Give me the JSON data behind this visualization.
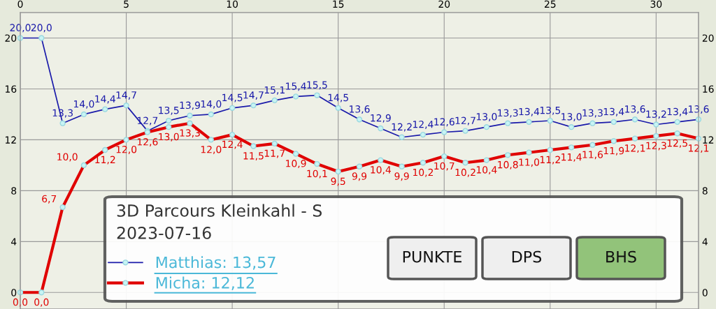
{
  "chart_data": {
    "type": "line",
    "title": "3D Parcours Kleinkahl - S",
    "subtitle": "2023-07-16",
    "x": [
      0,
      1,
      2,
      3,
      4,
      5,
      6,
      7,
      8,
      9,
      10,
      11,
      12,
      13,
      14,
      15,
      16,
      17,
      18,
      19,
      20,
      21,
      22,
      23,
      24,
      25,
      26,
      27,
      28,
      29,
      30,
      31,
      32
    ],
    "series": [
      {
        "name": "Matthias: 13,57",
        "color": "#1a1aaa",
        "values": [
          20.0,
          20.0,
          13.3,
          14.0,
          14.4,
          14.7,
          12.7,
          13.5,
          13.9,
          14.0,
          14.5,
          14.7,
          15.1,
          15.4,
          15.5,
          14.5,
          13.6,
          12.9,
          12.2,
          12.4,
          12.6,
          12.7,
          13.0,
          13.3,
          13.4,
          13.5,
          13.0,
          13.3,
          13.4,
          13.6,
          13.2,
          13.4,
          13.6
        ],
        "value_labels": [
          "20,0",
          "20,0",
          "13,3",
          "14,0",
          "14,4",
          "14,7",
          "12,7",
          "13,5",
          "13,9",
          "14,0",
          "14,5",
          "14,7",
          "15,1",
          "15,4",
          "15,5",
          "14,5",
          "13,6",
          "12,9",
          "12,2",
          "12,4",
          "12,6",
          "12,7",
          "13,0",
          "13,3",
          "13,4",
          "13,5",
          "13,0",
          "13,3",
          "13,4",
          "13,6",
          "13,2",
          "13,4",
          "13,6"
        ]
      },
      {
        "name": "Micha: 12,12",
        "color": "#e00000",
        "values": [
          0.0,
          0.0,
          6.7,
          10.0,
          11.2,
          12.0,
          12.6,
          13.0,
          13.3,
          12.0,
          12.4,
          11.5,
          11.7,
          10.9,
          10.1,
          9.5,
          9.9,
          10.4,
          9.9,
          10.2,
          10.7,
          10.2,
          10.4,
          10.8,
          11.0,
          11.2,
          11.4,
          11.6,
          11.9,
          12.1,
          12.3,
          12.5,
          12.1
        ],
        "value_labels": [
          "0,0",
          "0,0",
          "6,7",
          "10,0",
          "11,2",
          "12,0",
          "12,6",
          "13,0",
          "13,3",
          "12,0",
          "12,4",
          "11,5",
          "11,7",
          "10,9",
          "10,1",
          "9,5",
          "9,9",
          "10,4",
          "9,9",
          "10,2",
          "10,7",
          "10,2",
          "10,4",
          "10,8",
          "11,0",
          "11,2",
          "11,4",
          "11,6",
          "11,9",
          "12,1",
          "12,3",
          "12,5",
          "12,1"
        ]
      }
    ],
    "xlim": [
      0,
      32
    ],
    "xticks": [
      0,
      5,
      10,
      15,
      20,
      25,
      30
    ],
    "ylim": [
      -1.3,
      22
    ],
    "yticks": [
      0,
      4,
      8,
      12,
      16,
      20
    ],
    "y2lim": [
      -1.3,
      22
    ],
    "y2ticks": [
      0,
      4,
      8,
      12,
      16,
      20
    ],
    "grid": true,
    "marker": "circle",
    "legend": "bottom",
    "annotations": [
      "PUNKTE",
      "DPS",
      "BHS"
    ]
  }
}
